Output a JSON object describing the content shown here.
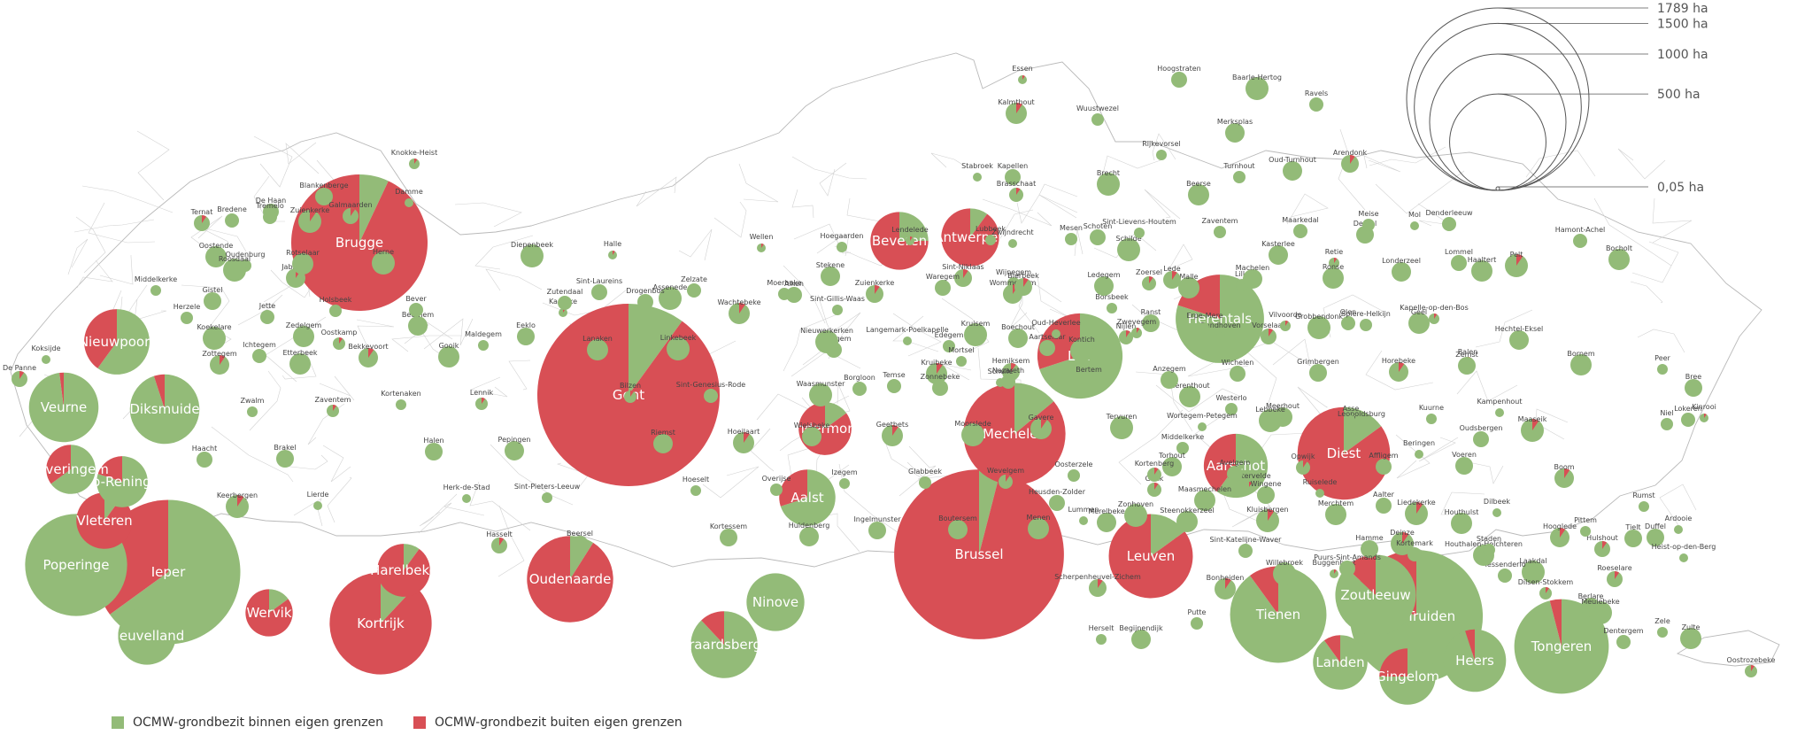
{
  "colors": {
    "inside": "#93bb78",
    "outside": "#d84f55"
  },
  "legend": [
    {
      "label": "OCMW-grondbezit binnen eigen grenzen",
      "color": "#93bb78"
    },
    {
      "label": "OCMW-grondbezit buiten eigen grenzen",
      "color": "#d84f55"
    }
  ],
  "scale": [
    {
      "label": "1789 ha",
      "value": 1789
    },
    {
      "label": "1500 ha",
      "value": 1500
    },
    {
      "label": "1000 ha",
      "value": 1000
    },
    {
      "label": "500 ha",
      "value": 500
    },
    {
      "label": "0,05 ha",
      "value": 0.05
    }
  ],
  "municipalities": [
    {
      "name": "Brugge",
      "total": 1000,
      "outside_fraction": 0.93,
      "label_size": "big"
    },
    {
      "name": "Gent",
      "total": 1789,
      "outside_fraction": 0.9,
      "label_size": "big"
    },
    {
      "name": "Brussel",
      "total": 1550,
      "outside_fraction": 0.96,
      "label_size": "big"
    },
    {
      "name": "Ieper",
      "total": 1120,
      "outside_fraction": 0.35,
      "label_size": "big"
    },
    {
      "name": "Poperinge",
      "total": 560,
      "outside_fraction": 0.0,
      "label_size": "big"
    },
    {
      "name": "Kortrijk",
      "total": 560,
      "outside_fraction": 0.88,
      "label_size": "big"
    },
    {
      "name": "Mechelen",
      "total": 560,
      "outside_fraction": 0.86,
      "label_size": "big"
    },
    {
      "name": "Sint-Truiden",
      "total": 950,
      "outside_fraction": 0.17,
      "label_size": "big"
    },
    {
      "name": "Tongeren",
      "total": 480,
      "outside_fraction": 0.04,
      "label_size": "big"
    },
    {
      "name": "Herentals",
      "total": 420,
      "outside_fraction": 0.2,
      "label_size": "big"
    },
    {
      "name": "Diest",
      "total": 460,
      "outside_fraction": 0.85,
      "label_size": "big"
    },
    {
      "name": "Tienen",
      "total": 500,
      "outside_fraction": 0.1,
      "label_size": "big"
    },
    {
      "name": "Leuven",
      "total": 380,
      "outside_fraction": 0.85,
      "label_size": "big"
    },
    {
      "name": "Oudenaarde",
      "total": 400,
      "outside_fraction": 0.91,
      "label_size": "big"
    },
    {
      "name": "Lier",
      "total": 390,
      "outside_fraction": 0.3,
      "label_size": "big"
    },
    {
      "name": "Zoutleeuw",
      "total": 350,
      "outside_fraction": 0.13,
      "label_size": "big"
    },
    {
      "name": "Aarschot",
      "total": 220,
      "outside_fraction": 0.4,
      "label_size": "big"
    },
    {
      "name": "Diksmuide",
      "total": 260,
      "outside_fraction": 0.05,
      "label_size": "big"
    },
    {
      "name": "Veurne",
      "total": 260,
      "outside_fraction": 0.02,
      "label_size": "big"
    },
    {
      "name": "Nieuwpoort",
      "total": 230,
      "outside_fraction": 0.4,
      "label_size": "big"
    },
    {
      "name": "Heuvelland",
      "total": 180,
      "outside_fraction": 0.0,
      "label_size": "big"
    },
    {
      "name": "Vleteren",
      "total": 170,
      "outside_fraction": 0.9,
      "label_size": "big"
    },
    {
      "name": "Lo-Reninge",
      "total": 140,
      "outside_fraction": 0.2,
      "label_size": "big"
    },
    {
      "name": "Alveringem",
      "total": 130,
      "outside_fraction": 0.35,
      "label_size": "big"
    },
    {
      "name": "Harelbeke",
      "total": 150,
      "outside_fraction": 0.9,
      "label_size": "big"
    },
    {
      "name": "Wervik",
      "total": 120,
      "outside_fraction": 0.85,
      "label_size": "big"
    },
    {
      "name": "Geraardsbergen",
      "total": 240,
      "outside_fraction": 0.12,
      "label_size": "big"
    },
    {
      "name": "Ninove",
      "total": 180,
      "outside_fraction": 0.0,
      "label_size": "big"
    },
    {
      "name": "Aalst",
      "total": 170,
      "outside_fraction": 0.3,
      "label_size": "big"
    },
    {
      "name": "Dendermonde",
      "total": 150,
      "outside_fraction": 0.85,
      "label_size": "big"
    },
    {
      "name": "Beveren",
      "total": 180,
      "outside_fraction": 0.75,
      "label_size": "big"
    },
    {
      "name": "Antwerpen",
      "total": 180,
      "outside_fraction": 0.9,
      "label_size": "big"
    },
    {
      "name": "Landen",
      "total": 160,
      "outside_fraction": 0.1,
      "label_size": "big"
    },
    {
      "name": "Gingelom",
      "total": 170,
      "outside_fraction": 0.25,
      "label_size": "big"
    },
    {
      "name": "Heers",
      "total": 210,
      "outside_fraction": 0.05,
      "label_size": "big"
    }
  ],
  "small_labels": [
    "Essen",
    "Hoogstraten",
    "Baarle-Hertog",
    "Ravels",
    "Kalmthout",
    "Wuustwezel",
    "Merksplas",
    "Rijkevorsel",
    "Arendonk",
    "Stabroek",
    "Kapellen",
    "Brecht",
    "Brasschaat",
    "Beerse",
    "Turnhout",
    "Oud-Turnhout",
    "Knokke-Heist",
    "Blankenberge",
    "Damme",
    "De Haan",
    "Zuienkerke",
    "Bredene",
    "Oostende",
    "Oudenburg",
    "Jabbeke",
    "Middelkerke",
    "Gistel",
    "Koksijde",
    "De Panne",
    "Koekelare",
    "Ichtegem",
    "Zedelgem",
    "Oostkamp",
    "Beernem",
    "Maldegem",
    "Eeklo",
    "Kaprijke",
    "Sint-Laureins",
    "Assenede",
    "Zelzate",
    "Wachtebeke",
    "Moerbeke",
    "Stekene",
    "Sint-Gillis-Waas",
    "Sint-Niklaas",
    "Zwijndrecht",
    "Schoten",
    "Schilde",
    "Zoersel",
    "Malle",
    "Lille",
    "Kasterlee",
    "Retie",
    "Dessel",
    "Mol",
    "Lommel",
    "Pelt",
    "Hamont-Achel",
    "Bocholt",
    "Wijnegem",
    "Wommelgem",
    "Borsbeek",
    "Ranst",
    "Zandhoven",
    "Vorselaar",
    "Grobbendonk",
    "Olen",
    "Geel",
    "Balen",
    "Hechtel-Eksel",
    "Peer",
    "Bree",
    "Kinrooi",
    "Lievegem",
    "Waasmunster",
    "Temse",
    "Kruibeke",
    "Edegem",
    "Boechout",
    "Mortsel",
    "Hemiksem",
    "Schelle",
    "Aartselaar",
    "Kontich",
    "Nijlen",
    "Herenthout",
    "Westerlo",
    "Meerhout",
    "Ham",
    "Leopoldsburg",
    "Beringen",
    "Oudsbergen",
    "Maaseik",
    "Lokeren",
    "Bornem",
    "Niel",
    "Boom",
    "Rumst",
    "Duffel",
    "Heist-op-den-Berg",
    "Hulshout",
    "Laakdal",
    "Tessenderlo",
    "Houthalen-Helchteren",
    "Dilsen-Stokkem",
    "Berlare",
    "Zele",
    "Hamme",
    "Buggenhout",
    "Puurs-Sint-Amands",
    "Willebroek",
    "Sint-Katelijne-Waver",
    "Bonheiden",
    "Putte",
    "Begijnendijk",
    "Herselt",
    "Scherpenheuvel-Zichem",
    "Lummen",
    "Heusden-Zolder",
    "Zonhoven",
    "Genk",
    "Maasmechelen",
    "Middelkerke",
    "Torhout",
    "Lichtervelde",
    "Wingene",
    "Ruiselede",
    "Aalter",
    "Deinze",
    "Kortemark",
    "Houthulst",
    "Staden",
    "Hooglede",
    "Pittem",
    "Tielt",
    "Ardooie",
    "Roeselare",
    "Meulebeke",
    "Dentergem",
    "Zulte",
    "Oostrozebeke",
    "Wielsbeke",
    "Izegem",
    "Ingelmunster",
    "Lendelede",
    "Waregem",
    "Kruisem",
    "Nazareth",
    "Gavere",
    "Oosterzele",
    "Merelbeke",
    "Sint-Lievens-Houtem",
    "Lede",
    "Erpe-Mere",
    "Wichelen",
    "Lebbeke",
    "Opwijk",
    "Merchtem",
    "Meise",
    "Londerzeel",
    "Kapelle-op-den-Bos",
    "Zemst",
    "Kampenhout",
    "Haacht",
    "Keerbergen",
    "Tremelo",
    "Rotselaar",
    "Holsbeek",
    "Bekkevoort",
    "Kortenaken",
    "Halen",
    "Herk-de-Stad",
    "Hasselt",
    "Diepenbeek",
    "Zutendaal",
    "Lanaken",
    "Bilzen",
    "Riemst",
    "Hoeselt",
    "Kortessem",
    "Wellen",
    "Alken",
    "Nieuwerkerken",
    "Borgloon",
    "Geetbets",
    "Glabbeek",
    "Boutersem",
    "Lubbeek",
    "Bierbeek",
    "Oud-Heverlee",
    "Bertem",
    "Tervuren",
    "Kortenberg",
    "Steenokkerzeel",
    "Zaventem",
    "Machelen",
    "Vilvoorde",
    "Grimbergen",
    "Asse",
    "Affligem",
    "Liedekerke",
    "Denderleeuw",
    "Haaltert",
    "Herzele",
    "Zottegem",
    "Zwalm",
    "Brakel",
    "Lierde",
    "Galmaarden",
    "Herne",
    "Bever",
    "Gooik",
    "Lennik",
    "Pepingen",
    "Sint-Pieters-Leeuw",
    "Beersel",
    "Halle",
    "Drogenbos",
    "Linkebeek",
    "Sint-Genesius-Rode",
    "Hoeilaart",
    "Overijse",
    "Huldenberg",
    "Hoegaarden",
    "Zuienkerke",
    "Langemark-Poelkapelle",
    "Zonnebeke",
    "Moorslede",
    "Wevelgem",
    "Menen",
    "Mesen",
    "Ledegem",
    "Zwevegem",
    "Anzegem",
    "Wortegem-Petegem",
    "Avelgem",
    "Kluisbergen",
    "Maarkedal",
    "Ronse",
    "Spiere-Helkijn",
    "Horebeke",
    "Kuurne",
    "Voeren",
    "Dilbeek",
    "Ternat",
    "Roosdaal",
    "Jette",
    "Etterbeek",
    "Zaventem"
  ]
}
